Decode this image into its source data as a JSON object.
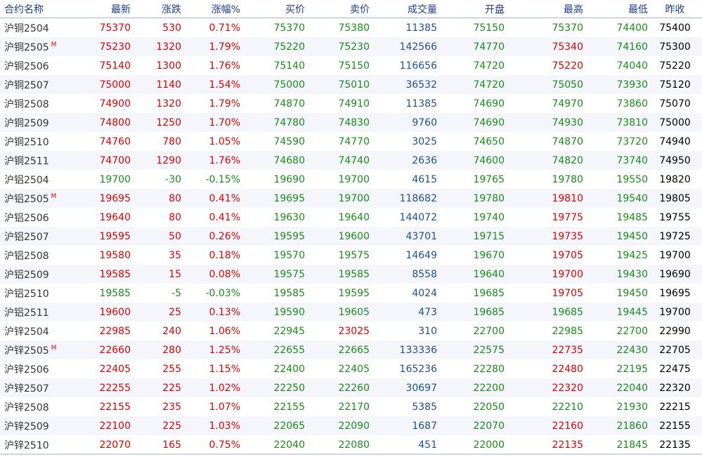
{
  "colors": {
    "up": "#e00000",
    "down": "#1a8c1a",
    "volume": "#1f4e9a",
    "neutral": "#000000",
    "header": "#1f3a8a"
  },
  "headers": [
    "合约名称",
    "最新",
    "涨跌",
    "涨幅%",
    "买价",
    "卖价",
    "成交量",
    "开盘",
    "最高",
    "最低",
    "昨收"
  ],
  "rows": [
    {
      "name": "沪铜2504",
      "main": false,
      "latest": "75370",
      "change": "530",
      "change_pct": "0.71%",
      "bid": "75370",
      "ask": "75380",
      "volume": "11385",
      "open": "75150",
      "high": "75370",
      "low": "74400",
      "prev_close": "75400"
    },
    {
      "name": "沪铜2505",
      "main": true,
      "latest": "75230",
      "change": "1320",
      "change_pct": "1.79%",
      "bid": "75220",
      "ask": "75230",
      "volume": "142566",
      "open": "74770",
      "high": "75340",
      "low": "74160",
      "prev_close": "75300"
    },
    {
      "name": "沪铜2506",
      "main": false,
      "latest": "75140",
      "change": "1300",
      "change_pct": "1.76%",
      "bid": "75140",
      "ask": "75150",
      "volume": "116656",
      "open": "74720",
      "high": "75220",
      "low": "74040",
      "prev_close": "75220"
    },
    {
      "name": "沪铜2507",
      "main": false,
      "latest": "75000",
      "change": "1140",
      "change_pct": "1.54%",
      "bid": "75000",
      "ask": "75010",
      "volume": "36532",
      "open": "74720",
      "high": "75050",
      "low": "73930",
      "prev_close": "75120"
    },
    {
      "name": "沪铜2508",
      "main": false,
      "latest": "74900",
      "change": "1320",
      "change_pct": "1.79%",
      "bid": "74870",
      "ask": "74910",
      "volume": "11385",
      "open": "74690",
      "high": "74970",
      "low": "73860",
      "prev_close": "75070"
    },
    {
      "name": "沪铜2509",
      "main": false,
      "latest": "74800",
      "change": "1250",
      "change_pct": "1.70%",
      "bid": "74780",
      "ask": "74830",
      "volume": "9760",
      "open": "74690",
      "high": "74930",
      "low": "73810",
      "prev_close": "75000"
    },
    {
      "name": "沪铜2510",
      "main": false,
      "latest": "74760",
      "change": "780",
      "change_pct": "1.05%",
      "bid": "74590",
      "ask": "74770",
      "volume": "3025",
      "open": "74650",
      "high": "74870",
      "low": "73720",
      "prev_close": "74940"
    },
    {
      "name": "沪铜2511",
      "main": false,
      "latest": "74700",
      "change": "1290",
      "change_pct": "1.76%",
      "bid": "74680",
      "ask": "74740",
      "volume": "2636",
      "open": "74600",
      "high": "74820",
      "low": "73740",
      "prev_close": "74950"
    },
    {
      "name": "沪铝2504",
      "main": false,
      "latest": "19700",
      "change": "-30",
      "change_pct": "-0.15%",
      "bid": "19690",
      "ask": "19700",
      "volume": "4615",
      "open": "19765",
      "high": "19780",
      "low": "19550",
      "prev_close": "19820"
    },
    {
      "name": "沪铝2505",
      "main": true,
      "latest": "19695",
      "change": "80",
      "change_pct": "0.41%",
      "bid": "19695",
      "ask": "19700",
      "volume": "118682",
      "open": "19780",
      "high": "19810",
      "low": "19540",
      "prev_close": "19805"
    },
    {
      "name": "沪铝2506",
      "main": false,
      "latest": "19640",
      "change": "80",
      "change_pct": "0.41%",
      "bid": "19630",
      "ask": "19640",
      "volume": "144072",
      "open": "19740",
      "high": "19775",
      "low": "19485",
      "prev_close": "19755"
    },
    {
      "name": "沪铝2507",
      "main": false,
      "latest": "19595",
      "change": "50",
      "change_pct": "0.26%",
      "bid": "19595",
      "ask": "19600",
      "volume": "43701",
      "open": "19715",
      "high": "19735",
      "low": "19450",
      "prev_close": "19725"
    },
    {
      "name": "沪铝2508",
      "main": false,
      "latest": "19580",
      "change": "35",
      "change_pct": "0.18%",
      "bid": "19570",
      "ask": "19575",
      "volume": "14649",
      "open": "19670",
      "high": "19705",
      "low": "19425",
      "prev_close": "19700"
    },
    {
      "name": "沪铝2509",
      "main": false,
      "latest": "19585",
      "change": "15",
      "change_pct": "0.08%",
      "bid": "19575",
      "ask": "19585",
      "volume": "8558",
      "open": "19640",
      "high": "19700",
      "low": "19430",
      "prev_close": "19690"
    },
    {
      "name": "沪铝2510",
      "main": false,
      "latest": "19585",
      "change": "-5",
      "change_pct": "-0.03%",
      "bid": "19585",
      "ask": "19595",
      "volume": "4024",
      "open": "19685",
      "high": "19705",
      "low": "19450",
      "prev_close": "19695"
    },
    {
      "name": "沪铝2511",
      "main": false,
      "latest": "19600",
      "change": "25",
      "change_pct": "0.13%",
      "bid": "19590",
      "ask": "19605",
      "volume": "473",
      "open": "19685",
      "high": "19685",
      "low": "19445",
      "prev_close": "19700"
    },
    {
      "name": "沪锌2504",
      "main": false,
      "latest": "22985",
      "change": "240",
      "change_pct": "1.06%",
      "bid": "22945",
      "ask": "23025",
      "volume": "310",
      "open": "22700",
      "high": "22985",
      "low": "22700",
      "prev_close": "22990"
    },
    {
      "name": "沪锌2505",
      "main": true,
      "latest": "22660",
      "change": "280",
      "change_pct": "1.25%",
      "bid": "22655",
      "ask": "22665",
      "volume": "133336",
      "open": "22575",
      "high": "22735",
      "low": "22430",
      "prev_close": "22705"
    },
    {
      "name": "沪锌2506",
      "main": false,
      "latest": "22405",
      "change": "255",
      "change_pct": "1.15%",
      "bid": "22400",
      "ask": "22405",
      "volume": "165236",
      "open": "22280",
      "high": "22480",
      "low": "22195",
      "prev_close": "22475"
    },
    {
      "name": "沪锌2507",
      "main": false,
      "latest": "22255",
      "change": "225",
      "change_pct": "1.02%",
      "bid": "22250",
      "ask": "22260",
      "volume": "30697",
      "open": "22200",
      "high": "22320",
      "low": "22040",
      "prev_close": "22320"
    },
    {
      "name": "沪锌2508",
      "main": false,
      "latest": "22155",
      "change": "235",
      "change_pct": "1.07%",
      "bid": "22155",
      "ask": "22170",
      "volume": "5385",
      "open": "22050",
      "high": "22210",
      "low": "21930",
      "prev_close": "22215"
    },
    {
      "name": "沪锌2509",
      "main": false,
      "latest": "22100",
      "change": "225",
      "change_pct": "1.03%",
      "bid": "22065",
      "ask": "22090",
      "volume": "1687",
      "open": "22070",
      "high": "22160",
      "low": "21860",
      "prev_close": "22155"
    },
    {
      "name": "沪锌2510",
      "main": false,
      "latest": "22070",
      "change": "165",
      "change_pct": "0.75%",
      "bid": "22040",
      "ask": "22080",
      "volume": "451",
      "open": "22000",
      "high": "22135",
      "low": "21845",
      "prev_close": "22135"
    }
  ],
  "main_badge": "M"
}
